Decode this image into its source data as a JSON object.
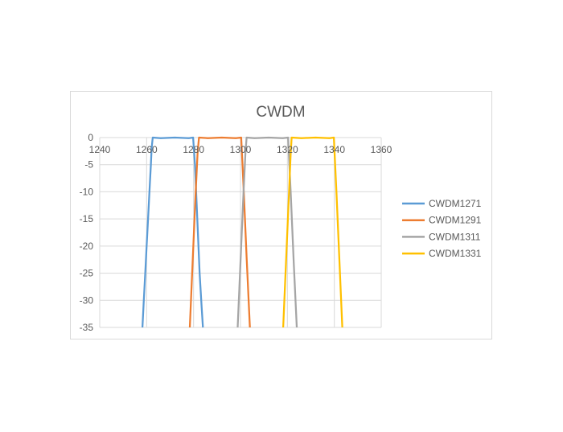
{
  "chart_data": {
    "type": "line",
    "title": "CWDM",
    "xlabel": "",
    "ylabel": "",
    "xlim": [
      1240,
      1360
    ],
    "ylim": [
      -35,
      0
    ],
    "xticks": [
      1240,
      1260,
      1280,
      1300,
      1320,
      1340,
      1360
    ],
    "yticks": [
      0,
      -5,
      -10,
      -15,
      -20,
      -25,
      -30,
      -35
    ],
    "grid": true,
    "legend_position": "right",
    "series": [
      {
        "name": "CWDM1271",
        "color": "#5b9bd5",
        "x": [
          1258.2,
          1258.8,
          1259.4,
          1260.0,
          1260.6,
          1261.2,
          1261.8,
          1262.1,
          1262.6,
          1266,
          1272,
          1278,
          1279.8,
          1280.6,
          1281.6,
          1282.6,
          1283.4,
          1284.0
        ],
        "y": [
          -35,
          -30,
          -25,
          -20,
          -15,
          -10,
          -5,
          -2,
          0,
          -0.1,
          0,
          -0.1,
          0,
          -5,
          -15,
          -25,
          -31,
          -35
        ]
      },
      {
        "name": "CWDM1291",
        "color": "#ed7d31",
        "x": [
          1278.4,
          1279.6,
          1280.8,
          1281.7,
          1282.3,
          1286,
          1292,
          1298,
          1300.3,
          1301.4,
          1302.6,
          1304.0
        ],
        "y": [
          -35,
          -23,
          -11,
          -3,
          0,
          -0.1,
          0,
          -0.1,
          0,
          -10,
          -22,
          -35
        ]
      },
      {
        "name": "CWDM1311",
        "color": "#a5a5a5",
        "x": [
          1298.8,
          1300.0,
          1301.3,
          1302.1,
          1302.6,
          1306,
          1312,
          1318,
          1320.3,
          1321.4,
          1322.7,
          1324.0
        ],
        "y": [
          -35,
          -23,
          -10,
          -3,
          0,
          -0.1,
          0,
          -0.1,
          0,
          -10,
          -23,
          -35
        ]
      },
      {
        "name": "CWDM1331",
        "color": "#ffc000",
        "x": [
          1318.2,
          1319.4,
          1320.7,
          1321.4,
          1321.8,
          1326,
          1332,
          1338,
          1339.8,
          1340.9,
          1342.2,
          1343.4
        ],
        "y": [
          -35,
          -23,
          -10,
          -3,
          0,
          -0.1,
          0,
          -0.1,
          0,
          -10,
          -23,
          -35
        ]
      }
    ]
  }
}
